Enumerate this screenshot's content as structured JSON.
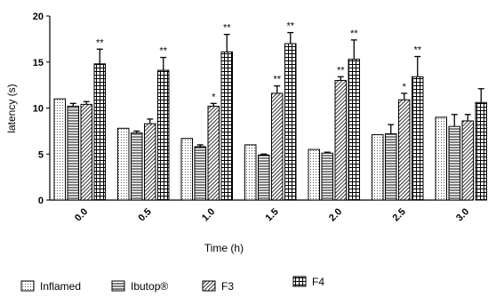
{
  "chart_data": {
    "type": "bar",
    "title": "",
    "xlabel": "Time (h)",
    "ylabel": "latency (s)",
    "ylim": [
      0,
      20
    ],
    "yticks": [
      "0",
      "5",
      "10",
      "15",
      "20"
    ],
    "categories": [
      "0.0",
      "0.5",
      "1.0",
      "1.5",
      "2.0",
      "2.5",
      "3.0"
    ],
    "series": [
      {
        "name": "Inflamed",
        "pattern": "dots",
        "values": [
          11.0,
          7.8,
          6.7,
          6.0,
          5.5,
          7.1,
          9.0
        ],
        "errors": [
          0,
          0,
          0,
          0,
          0,
          0,
          0
        ],
        "annotations": [
          "",
          "",
          "",
          "",
          "",
          "",
          ""
        ]
      },
      {
        "name": "Ibutop®",
        "pattern": "horizontal-lines",
        "values": [
          10.2,
          7.3,
          5.8,
          4.9,
          5.1,
          7.2,
          8.0
        ],
        "errors": [
          0.3,
          0.2,
          0.2,
          0.1,
          0.1,
          1.0,
          1.3
        ],
        "annotations": [
          "",
          "",
          "",
          "",
          "",
          "",
          ""
        ]
      },
      {
        "name": "F3",
        "pattern": "diagonal-lines",
        "values": [
          10.4,
          8.3,
          10.2,
          11.6,
          13.0,
          10.9,
          8.6
        ],
        "errors": [
          0.3,
          0.5,
          0.3,
          0.8,
          0.4,
          0.7,
          0.7
        ],
        "annotations": [
          "",
          "",
          "*",
          "**",
          "**",
          "*",
          ""
        ]
      },
      {
        "name": "F4",
        "pattern": "grid",
        "values": [
          14.8,
          14.1,
          16.1,
          17.0,
          15.3,
          13.4,
          10.6
        ],
        "errors": [
          1.6,
          1.4,
          1.9,
          1.2,
          2.1,
          2.2,
          1.5
        ],
        "annotations": [
          "**",
          "**",
          "**",
          "**",
          "**",
          "**",
          ""
        ]
      }
    ],
    "legend_position": "bottom"
  }
}
